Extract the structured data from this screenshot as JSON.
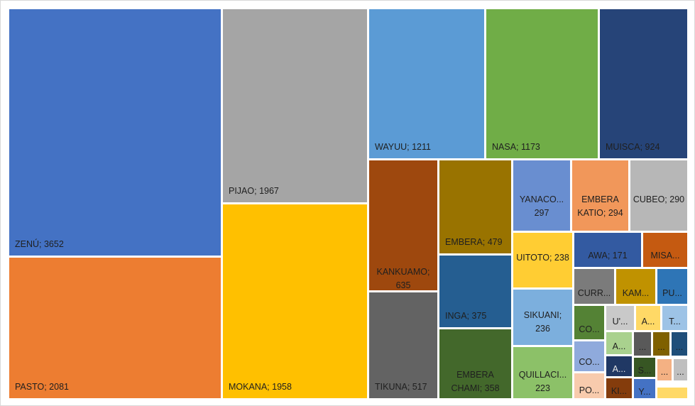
{
  "chart_data": {
    "type": "treemap",
    "title": "",
    "items": [
      {
        "label": "ZENÚ; 3652",
        "name": "ZENÚ",
        "value": 3652,
        "color": "#4472c4",
        "text_color": "#1f1f1f"
      },
      {
        "label": "PASTO; 2081",
        "name": "PASTO",
        "value": 2081,
        "color": "#ed7d31",
        "text_color": "#1f1f1f"
      },
      {
        "label": "PIJAO; 1967",
        "name": "PIJAO",
        "value": 1967,
        "color": "#a5a5a5",
        "text_color": "#1f1f1f"
      },
      {
        "label": "MOKANA; 1958",
        "name": "MOKANA",
        "value": 1958,
        "color": "#ffc000",
        "text_color": "#1f1f1f"
      },
      {
        "label": "WAYUU; 1211",
        "name": "WAYUU",
        "value": 1211,
        "color": "#5b9bd5",
        "text_color": "#1f1f1f"
      },
      {
        "label": "NASA; 1173",
        "name": "NASA",
        "value": 1173,
        "color": "#70ad47",
        "text_color": "#1f1f1f"
      },
      {
        "label": "MUISCA; 924",
        "name": "MUISCA",
        "value": 924,
        "color": "#264478",
        "text_color": "#1f1f1f"
      },
      {
        "label": "KANKUAMO; 635",
        "name": "KANKUAMO",
        "value": 635,
        "color": "#9e480e",
        "text_color": "#1f1f1f"
      },
      {
        "label": "TIKUNA; 517",
        "name": "TIKUNA",
        "value": 517,
        "color": "#636363",
        "text_color": "#1f1f1f"
      },
      {
        "label": "EMBERA; 479",
        "name": "EMBERA",
        "value": 479,
        "color": "#997300",
        "text_color": "#1f1f1f"
      },
      {
        "label": "INGA; 375",
        "name": "INGA",
        "value": 375,
        "color": "#255e91",
        "text_color": "#1f1f1f"
      },
      {
        "label": "EMBERA CHAMI; 358",
        "name": "EMBERA CHAMI",
        "value": 358,
        "color": "#43682b",
        "text_color": "#1f1f1f"
      },
      {
        "label": "YANACO... 297",
        "name": "YANACO...",
        "value": 297,
        "color": "#698ed0",
        "text_color": "#1f1f1f"
      },
      {
        "label": "EMBERA KATIO; 294",
        "name": "EMBERA KATIO",
        "value": 294,
        "color": "#f1975a",
        "text_color": "#1f1f1f"
      },
      {
        "label": "CUBEO; 290",
        "name": "CUBEO",
        "value": 290,
        "color": "#b7b7b7",
        "text_color": "#1f1f1f"
      },
      {
        "label": "UITOTO; 238",
        "name": "UITOTO",
        "value": 238,
        "color": "#ffcd33",
        "text_color": "#1f1f1f"
      },
      {
        "label": "SIKUANI; 236",
        "name": "SIKUANI",
        "value": 236,
        "color": "#7cafdd",
        "text_color": "#1f1f1f"
      },
      {
        "label": "QUILLACI... 223",
        "name": "QUILLACI...",
        "value": 223,
        "color": "#8cc168",
        "text_color": "#1f1f1f"
      },
      {
        "label": "AWA; 171",
        "name": "AWA",
        "value": 171,
        "color": "#335aa1",
        "text_color": "#1f1f1f"
      },
      {
        "label": "MISA...",
        "name": "MISA...",
        "color": "#c55a11",
        "text_color": "#1f1f1f"
      },
      {
        "label": "CURR...",
        "name": "CURR...",
        "color": "#7b7b7b",
        "text_color": "#1f1f1f"
      },
      {
        "label": "KAM...",
        "name": "KAM...",
        "color": "#c09200",
        "text_color": "#1f1f1f"
      },
      {
        "label": "PU...",
        "name": "PU...",
        "color": "#2e75b6",
        "text_color": "#1f1f1f"
      },
      {
        "label": "CO...",
        "name": "CO...",
        "color": "#548235",
        "text_color": "#1f1f1f"
      },
      {
        "label": "U'...",
        "name": "U'...",
        "color": "#c9c9c9",
        "text_color": "#1f1f1f"
      },
      {
        "label": "A...",
        "name": "A...",
        "color": "#ffd966",
        "text_color": "#1f1f1f"
      },
      {
        "label": "T...",
        "name": "T...",
        "color": "#9dc3e6",
        "text_color": "#1f1f1f"
      },
      {
        "label": "CO...",
        "name": "CO...",
        "color": "#8faadc",
        "text_color": "#1f1f1f"
      },
      {
        "label": "A...",
        "name": "A...",
        "color": "#a9d18e",
        "text_color": "#1f1f1f"
      },
      {
        "label": "...",
        "name": "...",
        "color": "#595959",
        "text_color": "#1f1f1f"
      },
      {
        "label": "...",
        "name": "...",
        "color": "#7f6000",
        "text_color": "#1f1f1f"
      },
      {
        "label": "...",
        "name": "...",
        "color": "#1f4e79",
        "text_color": "#1f1f1f"
      },
      {
        "label": "A...",
        "name": "A...",
        "color": "#203864",
        "text_color": "#1f1f1f"
      },
      {
        "label": "S...",
        "name": "S...",
        "color": "#375623",
        "text_color": "#1f1f1f"
      },
      {
        "label": "...",
        "name": "...",
        "color": "#f4b183",
        "text_color": "#1f1f1f"
      },
      {
        "label": "...",
        "name": "...",
        "color": "#bfbfbf",
        "text_color": "#1f1f1f"
      },
      {
        "label": "PO...",
        "name": "PO...",
        "color": "#f8cbad",
        "text_color": "#1f1f1f"
      },
      {
        "label": "KI...",
        "name": "KI...",
        "color": "#843c0c",
        "text_color": "#1f1f1f"
      },
      {
        "label": "Y...",
        "name": "Y...",
        "color": "#4472c4",
        "text_color": "#1f1f1f"
      },
      {
        "label": "",
        "name": "",
        "color": "#ffd966",
        "text_color": "#1f1f1f"
      }
    ]
  }
}
